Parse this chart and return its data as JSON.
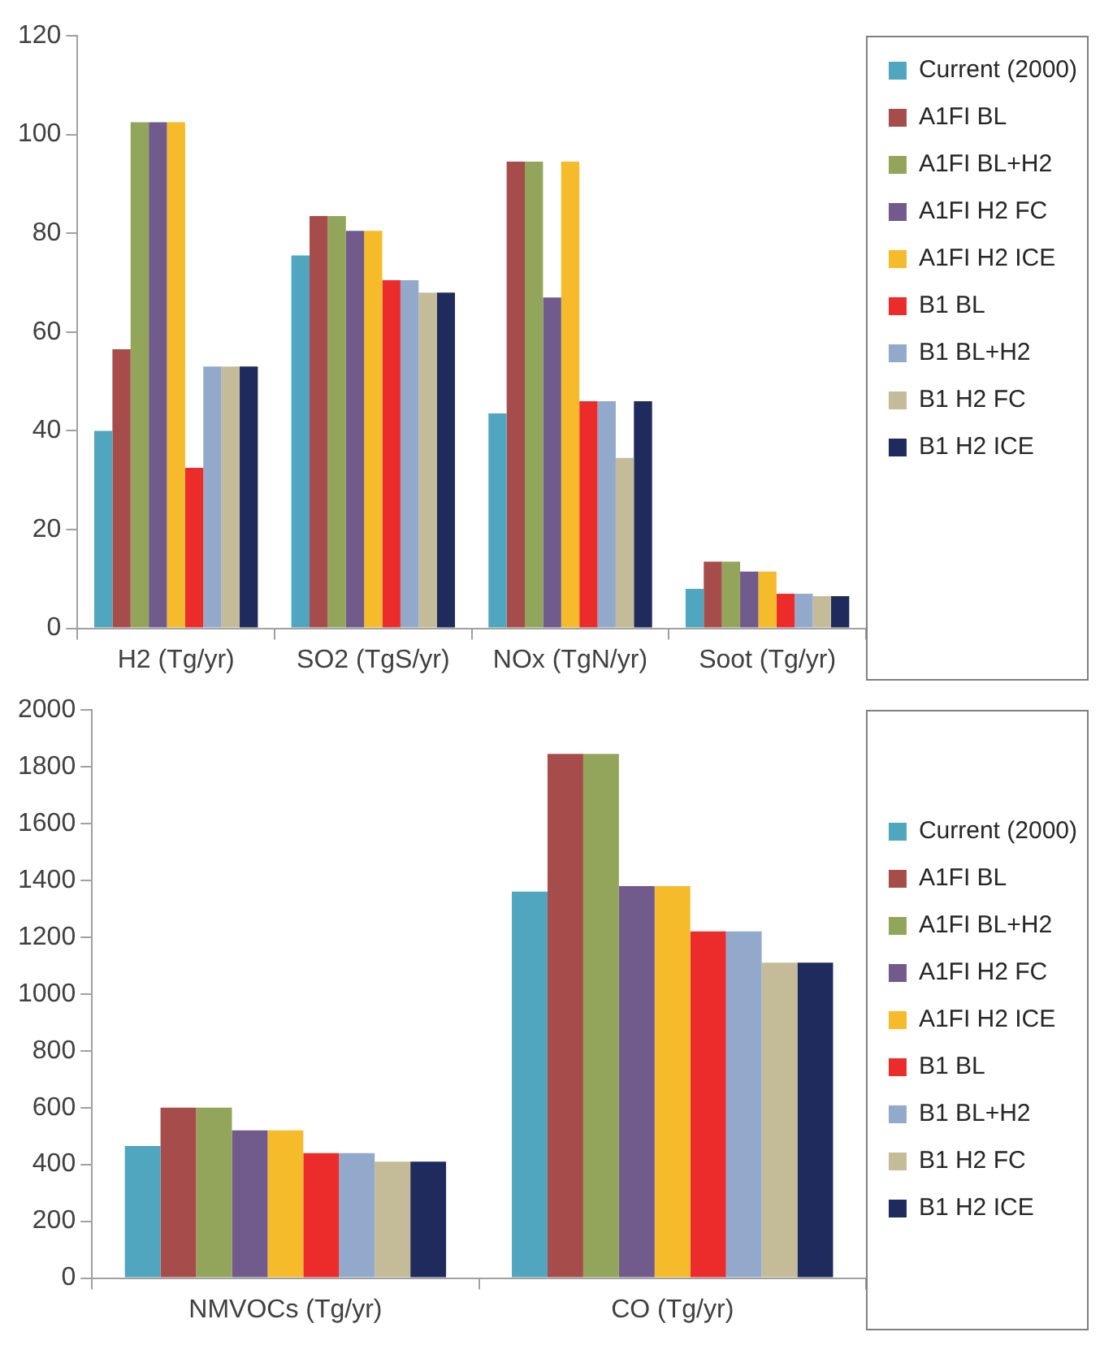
{
  "chart_data": [
    {
      "type": "bar",
      "categories": [
        "H2 (Tg/yr)",
        "SO2 (TgS/yr)",
        "NOx (TgN/yr)",
        "Soot (Tg/yr)"
      ],
      "ylim": [
        0,
        120
      ],
      "yticks": [
        0,
        20,
        40,
        60,
        80,
        100,
        120
      ],
      "grid": false,
      "legend": "top right",
      "series": [
        {
          "name": "Current (2000)",
          "color": "#4fa6be",
          "values": [
            40,
            75.5,
            43.5,
            8
          ]
        },
        {
          "name": "A1FI BL",
          "color": "#a64d4b",
          "values": [
            56.5,
            83.5,
            94.5,
            13.5
          ]
        },
        {
          "name": "A1FI BL+H2",
          "color": "#93a55a",
          "values": [
            102.5,
            83.5,
            94.5,
            13.5
          ]
        },
        {
          "name": "A1FI H2 FC",
          "color": "#715a8c",
          "values": [
            102.5,
            80.5,
            67,
            11.5
          ]
        },
        {
          "name": "A1FI H2 ICE",
          "color": "#f5bb2a",
          "values": [
            102.5,
            80.5,
            94.5,
            11.5
          ]
        },
        {
          "name": "B1 BL",
          "color": "#ec2b2b",
          "values": [
            32.5,
            70.5,
            46,
            7
          ]
        },
        {
          "name": "B1 BL+H2",
          "color": "#93a9cb",
          "values": [
            53,
            70.5,
            46,
            7
          ]
        },
        {
          "name": "B1 H2 FC",
          "color": "#c4bc98",
          "values": [
            53,
            68,
            34.5,
            6.5
          ]
        },
        {
          "name": "B1 H2 ICE",
          "color": "#1f2b5c",
          "values": [
            53,
            68,
            46,
            6.5
          ]
        }
      ]
    },
    {
      "type": "bar",
      "categories": [
        "NMVOCs (Tg/yr)",
        "CO (Tg/yr)"
      ],
      "ylim": [
        0,
        2000
      ],
      "yticks": [
        0,
        200,
        400,
        600,
        800,
        1000,
        1200,
        1400,
        1600,
        1800,
        2000
      ],
      "grid": false,
      "legend": "right",
      "series": [
        {
          "name": "Current (2000)",
          "color": "#4fa6be",
          "values": [
            465,
            1360
          ]
        },
        {
          "name": "A1FI BL",
          "color": "#a64d4b",
          "values": [
            600,
            1845
          ]
        },
        {
          "name": "A1FI BL+H2",
          "color": "#93a55a",
          "values": [
            600,
            1845
          ]
        },
        {
          "name": "A1FI H2 FC",
          "color": "#715a8c",
          "values": [
            520,
            1380
          ]
        },
        {
          "name": "A1FI H2 ICE",
          "color": "#f5bb2a",
          "values": [
            520,
            1380
          ]
        },
        {
          "name": "B1 BL",
          "color": "#ec2b2b",
          "values": [
            440,
            1220
          ]
        },
        {
          "name": "B1 BL+H2",
          "color": "#93a9cb",
          "values": [
            440,
            1220
          ]
        },
        {
          "name": "B1 H2 FC",
          "color": "#c4bc98",
          "values": [
            410,
            1110
          ]
        },
        {
          "name": "B1 H2 ICE",
          "color": "#1f2b5c",
          "values": [
            410,
            1110
          ]
        }
      ]
    }
  ]
}
